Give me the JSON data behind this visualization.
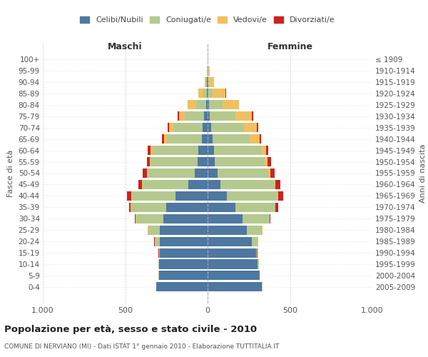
{
  "age_groups": [
    "0-4",
    "5-9",
    "10-14",
    "15-19",
    "20-24",
    "25-29",
    "30-34",
    "35-39",
    "40-44",
    "45-49",
    "50-54",
    "55-59",
    "60-64",
    "65-69",
    "70-74",
    "75-79",
    "80-84",
    "85-89",
    "90-94",
    "95-99",
    "100+"
  ],
  "birth_years": [
    "2005-2009",
    "2000-2004",
    "1995-1999",
    "1990-1994",
    "1985-1989",
    "1980-1984",
    "1975-1979",
    "1970-1974",
    "1965-1969",
    "1960-1964",
    "1955-1959",
    "1950-1954",
    "1945-1949",
    "1940-1944",
    "1935-1939",
    "1930-1934",
    "1925-1929",
    "1920-1924",
    "1915-1919",
    "1910-1914",
    "≤ 1909"
  ],
  "colors": {
    "celibi": "#4e78a0",
    "coniugati": "#b5c98e",
    "vedovi": "#f0c060",
    "divorziati": "#cc2222"
  },
  "maschi": {
    "celibi": [
      310,
      295,
      295,
      290,
      290,
      290,
      270,
      250,
      195,
      115,
      80,
      60,
      55,
      35,
      30,
      20,
      10,
      5,
      3,
      2,
      2
    ],
    "coniugati": [
      2,
      2,
      5,
      5,
      30,
      70,
      165,
      215,
      265,
      280,
      285,
      285,
      280,
      210,
      175,
      120,
      60,
      20,
      5,
      2,
      0
    ],
    "vedovi": [
      0,
      0,
      0,
      1,
      2,
      2,
      3,
      3,
      5,
      5,
      5,
      5,
      10,
      20,
      30,
      35,
      50,
      30,
      8,
      2,
      0
    ],
    "divorziati": [
      0,
      0,
      0,
      1,
      2,
      3,
      5,
      10,
      25,
      20,
      25,
      20,
      20,
      12,
      8,
      5,
      2,
      2,
      0,
      0,
      0
    ]
  },
  "femmine": {
    "celibi": [
      330,
      315,
      305,
      295,
      270,
      240,
      210,
      170,
      115,
      80,
      60,
      45,
      40,
      30,
      20,
      15,
      10,
      5,
      3,
      2,
      2
    ],
    "coniugati": [
      2,
      2,
      5,
      5,
      35,
      90,
      165,
      240,
      310,
      325,
      310,
      300,
      285,
      225,
      200,
      155,
      80,
      25,
      5,
      2,
      0
    ],
    "vedovi": [
      0,
      0,
      0,
      0,
      1,
      2,
      3,
      3,
      5,
      5,
      10,
      20,
      30,
      60,
      80,
      100,
      100,
      80,
      30,
      8,
      2
    ],
    "divorziati": [
      0,
      0,
      0,
      1,
      2,
      3,
      5,
      15,
      30,
      30,
      25,
      20,
      15,
      10,
      8,
      5,
      2,
      2,
      0,
      0,
      0
    ]
  },
  "title": "Popolazione per età, sesso e stato civile - 2010",
  "subtitle": "COMUNE DI NERVIANO (MI) - Dati ISTAT 1° gennaio 2010 - Elaborazione TUTTITALIA.IT",
  "xlabel_left": "Maschi",
  "xlabel_right": "Femmine",
  "ylabel_left": "Fasce di età",
  "ylabel_right": "Anni di nascita",
  "xlim": 1000,
  "legend_labels": [
    "Celibi/Nubili",
    "Coniugati/e",
    "Vedovi/e",
    "Divorziati/e"
  ],
  "bg_color": "#ffffff",
  "grid_color": "#cccccc"
}
